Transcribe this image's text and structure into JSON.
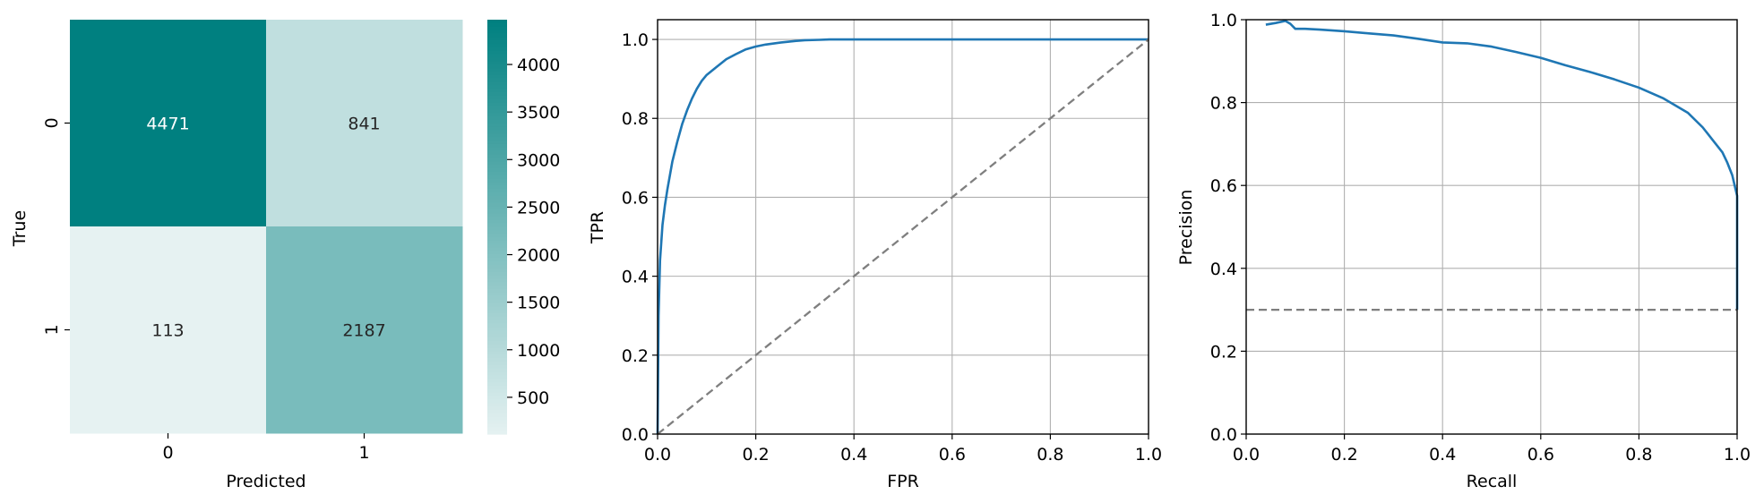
{
  "chart_data": [
    {
      "type": "heatmap",
      "title": "",
      "xlabel": "Predicted",
      "ylabel": "True",
      "x_categories": [
        "0",
        "1"
      ],
      "y_categories": [
        "0",
        "1"
      ],
      "values": [
        [
          4471,
          841
        ],
        [
          113,
          2187
        ]
      ],
      "colorbar": {
        "ticks": [
          500,
          1000,
          1500,
          2000,
          2500,
          3000,
          3500,
          4000
        ],
        "vmin": 113,
        "vmax": 4471,
        "low_color": "#e6f2f2",
        "high_color": "#008080"
      },
      "annotation_colors": {
        "dark_cell_text": "#ffffff",
        "light_cell_text": "#262626"
      }
    },
    {
      "type": "line",
      "title": "",
      "xlabel": "FPR",
      "ylabel": "TPR",
      "xlim": [
        0.0,
        1.0
      ],
      "ylim": [
        0.0,
        1.05
      ],
      "xticks": [
        "0.0",
        "0.2",
        "0.4",
        "0.6",
        "0.8",
        "1.0"
      ],
      "yticks": [
        "0.0",
        "0.2",
        "0.4",
        "0.6",
        "0.8",
        "1.0"
      ],
      "grid": true,
      "series": [
        {
          "style": "solid",
          "color": "#1f77b4",
          "x": [
            0.0,
            0.002,
            0.005,
            0.01,
            0.015,
            0.02,
            0.03,
            0.04,
            0.05,
            0.06,
            0.07,
            0.08,
            0.09,
            0.1,
            0.12,
            0.14,
            0.16,
            0.18,
            0.2,
            0.22,
            0.25,
            0.28,
            0.3,
            0.33,
            0.35,
            0.4,
            0.5,
            0.6,
            0.7,
            0.8,
            0.9,
            1.0
          ],
          "y": [
            0.0,
            0.3,
            0.44,
            0.53,
            0.58,
            0.62,
            0.69,
            0.74,
            0.785,
            0.82,
            0.85,
            0.875,
            0.895,
            0.91,
            0.93,
            0.95,
            0.963,
            0.975,
            0.982,
            0.987,
            0.992,
            0.996,
            0.998,
            0.999,
            1.0,
            1.0,
            1.0,
            1.0,
            1.0,
            1.0,
            1.0,
            1.0
          ]
        },
        {
          "style": "dashed",
          "color": "#7f7f7f",
          "x": [
            0.0,
            1.0
          ],
          "y": [
            0.0,
            1.0
          ]
        }
      ]
    },
    {
      "type": "line",
      "title": "",
      "xlabel": "Recall",
      "ylabel": "Precision",
      "xlim": [
        0.0,
        1.0
      ],
      "ylim": [
        0.0,
        1.0
      ],
      "xticks": [
        "0.0",
        "0.2",
        "0.4",
        "0.6",
        "0.8",
        "1.0"
      ],
      "yticks": [
        "0.0",
        "0.2",
        "0.4",
        "0.6",
        "0.8",
        "1.0"
      ],
      "grid": true,
      "series": [
        {
          "style": "solid",
          "color": "#1f77b4",
          "x": [
            0.04,
            0.06,
            0.08,
            0.09,
            0.1,
            0.12,
            0.15,
            0.2,
            0.25,
            0.3,
            0.35,
            0.4,
            0.45,
            0.5,
            0.55,
            0.6,
            0.65,
            0.7,
            0.75,
            0.8,
            0.85,
            0.9,
            0.93,
            0.95,
            0.97,
            0.98,
            0.99,
            0.995,
            1.0,
            1.0
          ],
          "y": [
            0.988,
            0.992,
            0.997,
            0.99,
            0.978,
            0.978,
            0.976,
            0.972,
            0.967,
            0.962,
            0.954,
            0.945,
            0.943,
            0.935,
            0.922,
            0.908,
            0.89,
            0.874,
            0.856,
            0.836,
            0.81,
            0.775,
            0.74,
            0.71,
            0.68,
            0.655,
            0.625,
            0.6,
            0.575,
            0.3
          ]
        },
        {
          "style": "dashed",
          "color": "#7f7f7f",
          "x": [
            0.0,
            1.0
          ],
          "y": [
            0.3,
            0.3
          ]
        }
      ]
    }
  ]
}
